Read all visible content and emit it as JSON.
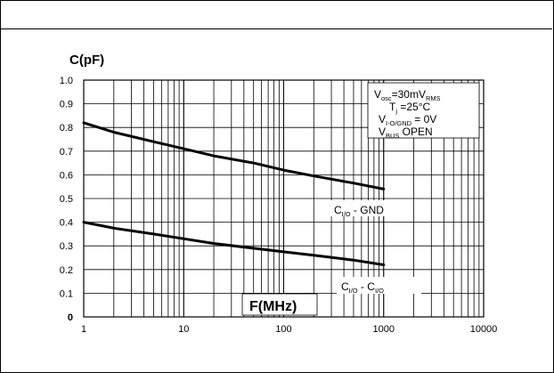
{
  "chart_data": {
    "type": "line",
    "ylabel": "C(pF)",
    "xlabel": "F(MHz)",
    "x_scale": "log",
    "xlim": [
      1,
      10000
    ],
    "ylim": [
      0,
      1.0
    ],
    "grid": true,
    "x_ticks": [
      "1",
      "10",
      "100",
      "1000",
      "10000"
    ],
    "y_ticks": [
      "0",
      "0.1",
      "0.2",
      "0.3",
      "0.4",
      "0.5",
      "0.6",
      "0.7",
      "0.8",
      "0.9",
      "1.0"
    ],
    "conditions": [
      {
        "main": "V",
        "sub": "osc",
        "rest": "=30mV",
        "sub2": "RMS"
      },
      {
        "main": "T",
        "sub": "j",
        "rest": " =25°C",
        "sub2": ""
      },
      {
        "main": "V",
        "sub": "I-O/GND",
        "rest": " = 0V",
        "sub2": ""
      },
      {
        "main": "V",
        "sub": "BUS",
        "rest": " OPEN",
        "sub2": ""
      }
    ],
    "series": [
      {
        "label_main": "C",
        "label_sub": "I/O",
        "label_rest": " - GND",
        "label_sub2": "",
        "x": [
          1,
          2,
          5,
          10,
          20,
          50,
          100,
          200,
          500,
          1000
        ],
        "y": [
          0.82,
          0.78,
          0.74,
          0.71,
          0.68,
          0.65,
          0.62,
          0.595,
          0.565,
          0.54
        ]
      },
      {
        "label_main": "C",
        "label_sub": "I/O",
        "label_rest": " - C",
        "label_sub2": "I/O",
        "x": [
          1,
          2,
          5,
          10,
          20,
          50,
          100,
          200,
          500,
          1000
        ],
        "y": [
          0.4,
          0.375,
          0.35,
          0.33,
          0.31,
          0.29,
          0.275,
          0.26,
          0.24,
          0.22
        ]
      }
    ]
  }
}
